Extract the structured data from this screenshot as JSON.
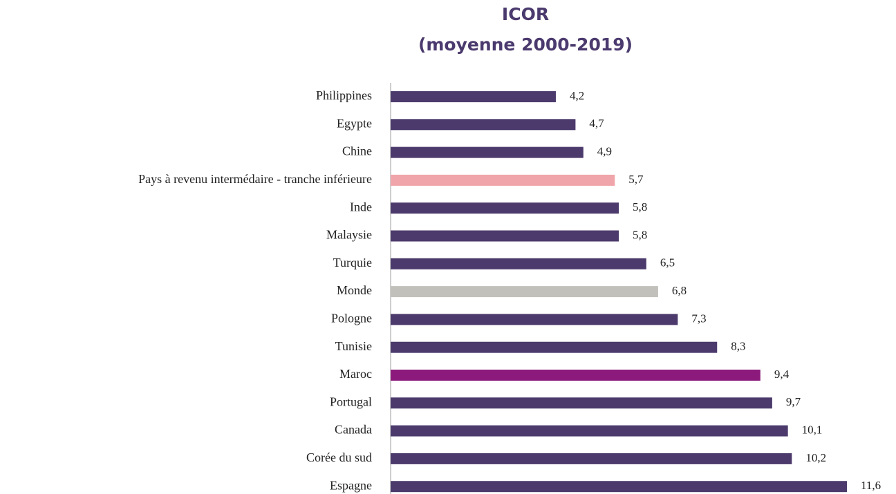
{
  "chart_data": {
    "type": "barh",
    "title": "ICOR",
    "subtitle": "(moyenne 2000-2019)",
    "categories": [
      "Philippines",
      "Egypte",
      "Chine",
      "Pays à revenu intermédaire - tranche inférieure",
      "Inde",
      "Malaysie",
      "Turquie",
      "Monde",
      "Pologne",
      "Tunisie",
      "Maroc",
      "Portugal",
      "Canada",
      "Corée du sud",
      "Espagne"
    ],
    "values": [
      4.2,
      4.7,
      4.9,
      5.7,
      5.8,
      5.8,
      6.5,
      6.8,
      7.3,
      8.3,
      9.4,
      9.7,
      10.1,
      10.2,
      11.6
    ],
    "value_labels": [
      "4,2",
      "4,7",
      "4,9",
      "5,7",
      "5,8",
      "5,8",
      "6,5",
      "6,8",
      "7,3",
      "8,3",
      "9,4",
      "9,7",
      "10,1",
      "10,2",
      "11,6"
    ],
    "colors": [
      "#4b3a6b",
      "#4b3a6b",
      "#4b3a6b",
      "#f0a5aa",
      "#4b3a6b",
      "#4b3a6b",
      "#4b3a6b",
      "#c2c0bb",
      "#4b3a6b",
      "#4b3a6b",
      "#8c1a7c",
      "#4b3a6b",
      "#4b3a6b",
      "#4b3a6b",
      "#4b3a6b"
    ]
  }
}
